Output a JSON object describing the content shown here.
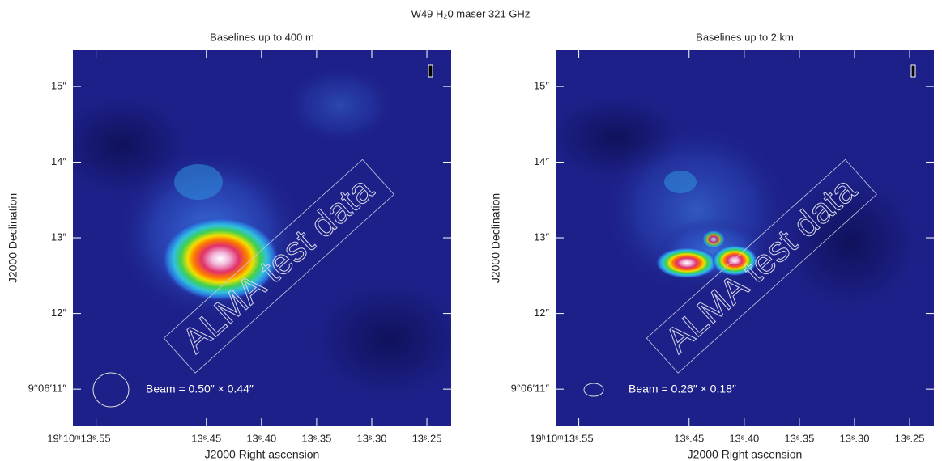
{
  "title": "W49 H₂0 maser 321 GHz",
  "chart_data": [
    {
      "type": "image",
      "title": "Baselines up to 400 m",
      "xlabel": "J2000 Right ascension",
      "ylabel": "J2000 Declination",
      "annotation": "Beam = 0.50″ × 0.44″",
      "watermark": "ALMA test data",
      "xlim": [
        13.571,
        13.228
      ],
      "ylim": [
        10.51,
        15.48
      ],
      "xticks": [
        {
          "value": 13.55,
          "label": "19ʰ10ᵐ13ˢ.55"
        },
        {
          "value": 13.45,
          "label": "13ˢ.45"
        },
        {
          "value": 13.4,
          "label": "13ˢ.40"
        },
        {
          "value": 13.35,
          "label": "13ˢ.35"
        },
        {
          "value": 13.3,
          "label": "13ˢ.30"
        },
        {
          "value": 13.25,
          "label": "13ˢ.25"
        }
      ],
      "yticks": [
        {
          "value": 11,
          "label": "9°06′11″"
        },
        {
          "value": 12,
          "label": "12″"
        },
        {
          "value": 13,
          "label": "13″"
        },
        {
          "value": 14,
          "label": "14″"
        },
        {
          "value": 15,
          "label": "15″"
        }
      ]
    },
    {
      "type": "image",
      "title": "Baselines up to 2 km",
      "xlabel": "J2000 Right ascension",
      "ylabel": "J2000 Declination",
      "annotation": "Beam = 0.26″ × 0.18″",
      "watermark": "ALMA test data",
      "xlim": [
        13.571,
        13.228
      ],
      "ylim": [
        10.51,
        15.48
      ],
      "xticks": [
        {
          "value": 13.55,
          "label": "19ʰ10ᵐ13ˢ.55"
        },
        {
          "value": 13.45,
          "label": "13ˢ.45"
        },
        {
          "value": 13.4,
          "label": "13ˢ.40"
        },
        {
          "value": 13.35,
          "label": "13ˢ.35"
        },
        {
          "value": 13.3,
          "label": "13ˢ.30"
        },
        {
          "value": 13.25,
          "label": "13ˢ.25"
        }
      ],
      "yticks": [
        {
          "value": 11,
          "label": "9°06′11″"
        },
        {
          "value": 12,
          "label": "12″"
        },
        {
          "value": 13,
          "label": "13″"
        },
        {
          "value": 14,
          "label": "14″"
        },
        {
          "value": 15,
          "label": "15″"
        }
      ]
    }
  ]
}
